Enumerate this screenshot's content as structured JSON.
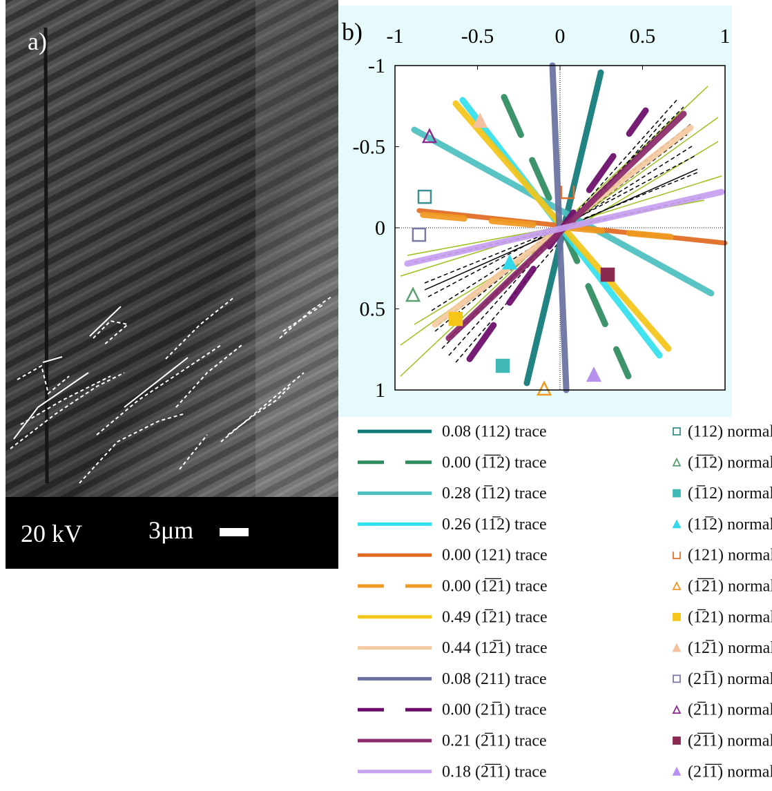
{
  "panel_a": {
    "label": "a)",
    "voltage": "20 kV",
    "scale": "3μm"
  },
  "chart_data": {
    "type": "trace",
    "label": "b)",
    "xlim": [
      -1,
      1
    ],
    "ylim": [
      1,
      -1
    ],
    "xticks": [
      -1,
      -0.5,
      0,
      0.5,
      1
    ],
    "yticks": [
      -1,
      -0.5,
      0,
      0.5,
      1
    ],
    "series": [
      {
        "name": "0.08 (112) trace",
        "color": "#0f7a78",
        "dashed": false,
        "x": [
          0.247,
          -0.201
        ],
        "y": [
          -0.957,
          0.957
        ]
      },
      {
        "name": "0.00 (1̅1̅2) trace",
        "color": "#2e8b5e",
        "dashed": true,
        "x": [
          -0.339,
          0.414
        ],
        "y": [
          -0.806,
          0.915
        ]
      },
      {
        "name": "0.28 (1̅12) trace",
        "color": "#4bbfbf",
        "dashed": false,
        "x": [
          -0.883,
          0.916
        ],
        "y": [
          -0.604,
          0.404
        ]
      },
      {
        "name": "0.26 (11̅2) trace",
        "color": "#33e0ee",
        "dashed": false,
        "x": [
          -0.59,
          0.603
        ],
        "y": [
          -0.787,
          0.787
        ]
      },
      {
        "name": "0.00 (121) trace",
        "color": "#e06a20",
        "dashed": false,
        "x": [
          -0.854,
          1.0
        ],
        "y": [
          -0.106,
          0.094
        ]
      },
      {
        "name": "0.00 (1̅2̅1) trace",
        "color": "#f09a20",
        "dashed": true,
        "x": [
          -0.83,
          0.82
        ],
        "y": [
          -0.08,
          0.07
        ]
      },
      {
        "name": "0.49 (1̅21) trace",
        "color": "#f5c518",
        "dashed": false,
        "x": [
          -0.632,
          0.657
        ],
        "y": [
          -0.766,
          0.745
        ]
      },
      {
        "name": "0.44 (12̅1) trace",
        "color": "#f5c9a0",
        "dashed": false,
        "x": [
          -0.757,
          0.791
        ],
        "y": [
          0.596,
          -0.617
        ]
      },
      {
        "name": "0.08 (211) trace",
        "color": "#6870a0",
        "dashed": false,
        "x": [
          -0.046,
          0.038
        ],
        "y": [
          -1,
          1
        ]
      },
      {
        "name": "0.00 (21̅1) trace",
        "color": "#6a0a6a",
        "dashed": true,
        "x": [
          -0.548,
          0.519
        ],
        "y": [
          0.809,
          -0.723
        ]
      },
      {
        "name": "0.21 (2̅11) trace",
        "color": "#8a2a6a",
        "dashed": false,
        "x": [
          -0.674,
          0.749
        ],
        "y": [
          0.681,
          -0.702
        ]
      },
      {
        "name": "0.18 (2̅1̅1) trace",
        "color": "#c8a0f0",
        "dashed": false,
        "x": [
          -0.925,
          0.979
        ],
        "y": [
          0.221,
          -0.221
        ]
      }
    ],
    "normals": [
      {
        "name": "(112) normal",
        "color": "#3a8f8f",
        "marker": "square",
        "filled": false,
        "x": -0.82,
        "y": -0.191
      },
      {
        "name": "(1̅1̅2) normal",
        "color": "#5aa070",
        "marker": "triangle",
        "filled": false,
        "x": -0.891,
        "y": 0.413
      },
      {
        "name": "(1̅12) normal",
        "color": "#40b8b8",
        "marker": "square",
        "filled": true,
        "x": -0.347,
        "y": 0.851
      },
      {
        "name": "(11̅2) normal",
        "color": "#33d8ea",
        "marker": "triangle",
        "filled": true,
        "x": -0.305,
        "y": 0.213
      },
      {
        "name": "(121) normal",
        "color": "#e07030",
        "marker": "cup",
        "filled": false,
        "x": 0.046,
        "y": -0.221
      },
      {
        "name": "(1̅2̅1) normal",
        "color": "#f09a20",
        "marker": "triangle",
        "filled": false,
        "x": -0.096,
        "y": 0.991
      },
      {
        "name": "(1̅21) normal",
        "color": "#f5c518",
        "marker": "square",
        "filled": true,
        "x": -0.632,
        "y": 0.562
      },
      {
        "name": "(12̅1) normal",
        "color": "#f5c0a0",
        "marker": "triangle",
        "filled": true,
        "x": -0.485,
        "y": -0.66
      },
      {
        "name": "(21̅1) normal",
        "color": "#7a7aa0",
        "marker": "square",
        "filled": false,
        "x": -0.854,
        "y": 0.043
      },
      {
        "name": "(2̅11) normal",
        "color": "#8a2a8a",
        "marker": "triangle",
        "filled": false,
        "x": -0.791,
        "y": -0.566
      },
      {
        "name": "(2̅1̅1) normal",
        "color": "#8a2a50",
        "marker": "square",
        "filled": true,
        "x": 0.289,
        "y": 0.289
      },
      {
        "name": "(21̅1̅) normal",
        "color": "#b890f0",
        "marker": "triangle",
        "filled": true,
        "x": 0.205,
        "y": 0.906
      }
    ]
  }
}
